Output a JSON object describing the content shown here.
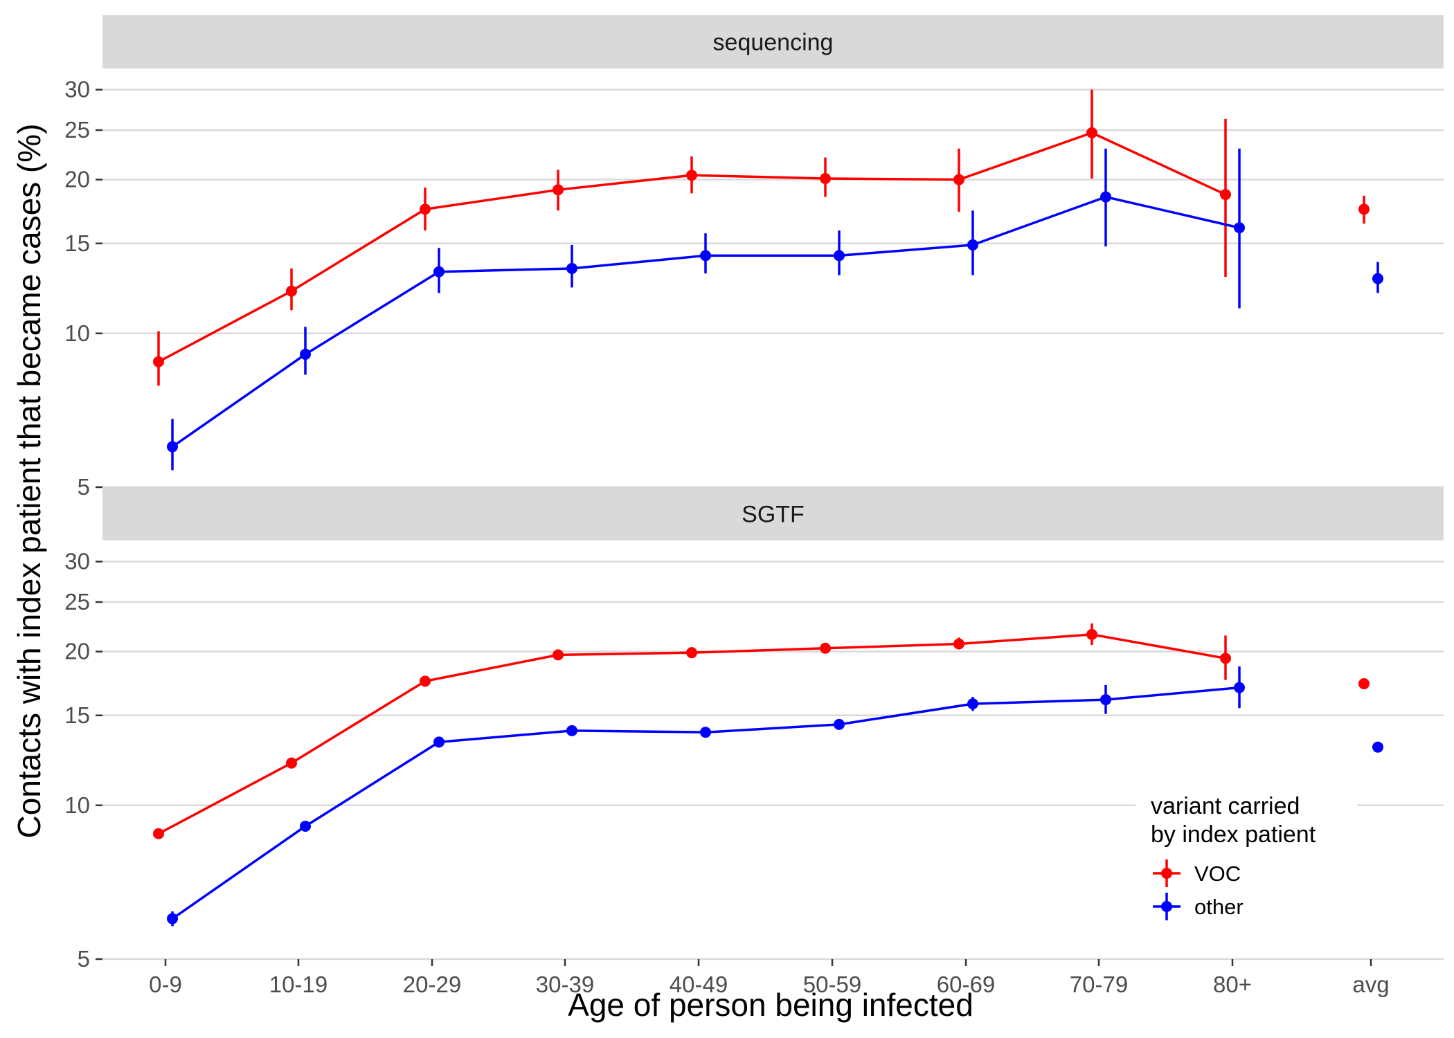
{
  "chart_data": {
    "type": "line",
    "xlabel": "Age of person being infected",
    "ylabel": "Contacts with index patient that became cases (%)",
    "x_tick_labels": [
      "0-9",
      "10-19",
      "20-29",
      "30-39",
      "40-49",
      "50-59",
      "60-69",
      "70-79",
      "80+",
      "avg"
    ],
    "y_scale": "log",
    "ylim": [
      5,
      33
    ],
    "y_ticks": [
      5,
      10,
      15,
      20,
      25,
      30
    ],
    "grid": "horizontal",
    "legend": {
      "title_lines": [
        "variant carried",
        "by index patient"
      ],
      "placement": "bottom-right",
      "entries": [
        {
          "label": "VOC",
          "color": "#ff0000"
        },
        {
          "label": "other",
          "color": "#0000ff"
        }
      ]
    },
    "facets": [
      {
        "label": "sequencing",
        "series": [
          {
            "key": "VOC",
            "color": "#ff0000",
            "values": [
              8.8,
              12.1,
              17.5,
              19.1,
              20.4,
              20.1,
              20.0,
              24.7,
              18.7
            ],
            "lower": [
              7.9,
              11.1,
              15.9,
              17.4,
              18.8,
              18.5,
              17.3,
              20.1,
              12.9
            ],
            "upper": [
              10.1,
              13.4,
              19.3,
              20.9,
              22.2,
              22.1,
              23.0,
              30.0,
              26.3
            ],
            "avg": {
              "value": 17.5,
              "lower": 16.4,
              "upper": 18.6
            }
          },
          {
            "key": "other",
            "color": "#0000ff",
            "values": [
              6.0,
              9.1,
              13.2,
              13.4,
              14.2,
              14.2,
              14.9,
              18.5,
              16.1
            ],
            "lower": [
              5.4,
              8.3,
              12.0,
              12.3,
              13.1,
              13.0,
              13.0,
              14.8,
              11.2
            ],
            "upper": [
              6.8,
              10.3,
              14.7,
              14.9,
              15.7,
              15.9,
              17.4,
              23.0,
              23.0
            ],
            "avg": {
              "value": 12.8,
              "lower": 12.0,
              "upper": 13.8
            }
          }
        ]
      },
      {
        "label": "SGTF",
        "series": [
          {
            "key": "VOC",
            "color": "#ff0000",
            "values": [
              8.8,
              12.1,
              17.5,
              19.7,
              19.9,
              20.3,
              20.7,
              21.6,
              19.4
            ],
            "lower": [
              8.6,
              11.9,
              17.3,
              19.5,
              19.7,
              20.0,
              20.2,
              20.6,
              17.6
            ],
            "upper": [
              9.0,
              12.3,
              17.7,
              19.9,
              20.1,
              20.6,
              21.3,
              22.7,
              21.5
            ],
            "avg": {
              "value": 17.3,
              "lower": 17.1,
              "upper": 17.5
            }
          },
          {
            "key": "other",
            "color": "#0000ff",
            "values": [
              6.0,
              9.1,
              13.3,
              14.0,
              13.9,
              14.4,
              15.8,
              16.1,
              17.0
            ],
            "lower": [
              5.8,
              8.9,
              13.1,
              13.8,
              13.7,
              14.2,
              15.3,
              15.1,
              15.5
            ],
            "upper": [
              6.2,
              9.3,
              13.5,
              14.2,
              14.1,
              14.6,
              16.3,
              17.2,
              18.7
            ],
            "avg": {
              "value": 13.0,
              "lower": 12.8,
              "upper": 13.2
            }
          }
        ]
      }
    ]
  }
}
